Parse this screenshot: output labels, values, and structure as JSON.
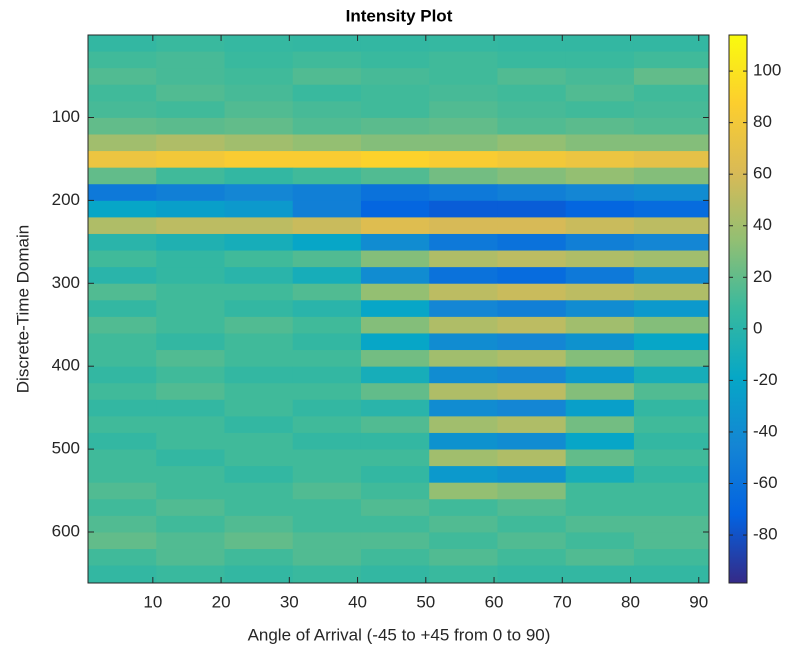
{
  "chart_data": {
    "type": "heatmap",
    "title": "Intensity Plot",
    "x_label": "Angle of Arrival (-45 to +45 from 0 to 90)",
    "y_label": "Discrete-Time Domain",
    "xlim": [
      0.5,
      91.5
    ],
    "ylim": [
      0.5,
      661.5
    ],
    "y_reversed": true,
    "xticks": [
      10,
      20,
      30,
      40,
      50,
      60,
      70,
      80,
      90
    ],
    "yticks": [
      100,
      200,
      300,
      400,
      500,
      600
    ],
    "clim": [
      -98.6,
      114
    ],
    "cticks": [
      -80,
      -60,
      -40,
      -20,
      0,
      20,
      40,
      60,
      80,
      100
    ],
    "colormap": [
      "#352a87",
      "#0363e1",
      "#1485d4",
      "#06a7c6",
      "#38b99e",
      "#92bf73",
      "#d9ba56",
      "#fcce2e",
      "#f9fb0e"
    ],
    "x_edges": [
      0.5,
      10.5,
      20.5,
      30.5,
      40.5,
      50.5,
      60.5,
      70.5,
      80.5,
      91.5
    ],
    "y_edges": [
      0.5,
      20.5,
      40.5,
      60.5,
      80.5,
      100.5,
      120.5,
      140.5,
      160.5,
      180.5,
      200.5,
      220.5,
      240.5,
      260.5,
      280.5,
      300.5,
      320.5,
      340.5,
      360.5,
      380.5,
      400.5,
      420.5,
      440.5,
      460.5,
      480.5,
      500.5,
      520.5,
      540.5,
      560.5,
      580.5,
      600.5,
      620.5,
      640.5,
      661.5
    ],
    "z": [
      [
        5,
        8,
        6,
        5,
        5,
        6,
        5,
        5,
        5
      ],
      [
        10,
        12,
        8,
        10,
        8,
        10,
        8,
        8,
        10
      ],
      [
        15,
        12,
        10,
        15,
        12,
        10,
        15,
        12,
        20
      ],
      [
        10,
        15,
        12,
        8,
        10,
        12,
        10,
        15,
        10
      ],
      [
        12,
        10,
        15,
        12,
        10,
        15,
        12,
        10,
        12
      ],
      [
        20,
        18,
        20,
        15,
        18,
        20,
        15,
        18,
        15
      ],
      [
        40,
        45,
        40,
        35,
        30,
        30,
        35,
        30,
        30
      ],
      [
        75,
        80,
        85,
        85,
        90,
        85,
        80,
        75,
        70
      ],
      [
        20,
        10,
        5,
        10,
        15,
        25,
        30,
        35,
        30
      ],
      [
        -55,
        -50,
        -45,
        -50,
        -60,
        -55,
        -50,
        -45,
        -40
      ],
      [
        -20,
        -25,
        -30,
        -50,
        -70,
        -75,
        -75,
        -70,
        -65
      ],
      [
        45,
        50,
        50,
        55,
        65,
        60,
        60,
        55,
        50
      ],
      [
        0,
        -5,
        -10,
        -20,
        -40,
        -55,
        -60,
        -50,
        -45
      ],
      [
        10,
        5,
        10,
        15,
        30,
        45,
        50,
        45,
        40
      ],
      [
        0,
        5,
        0,
        -10,
        -40,
        -60,
        -65,
        -55,
        -40
      ],
      [
        15,
        10,
        10,
        15,
        35,
        50,
        55,
        50,
        45
      ],
      [
        5,
        10,
        5,
        0,
        -20,
        -45,
        -50,
        -40,
        -30
      ],
      [
        15,
        10,
        15,
        10,
        30,
        45,
        50,
        40,
        30
      ],
      [
        10,
        5,
        10,
        5,
        -20,
        -40,
        -45,
        -35,
        -20
      ],
      [
        10,
        15,
        10,
        10,
        25,
        40,
        45,
        30,
        20
      ],
      [
        5,
        10,
        5,
        5,
        -10,
        -40,
        -45,
        -30,
        -10
      ],
      [
        10,
        15,
        10,
        10,
        20,
        45,
        50,
        30,
        15
      ],
      [
        5,
        5,
        10,
        5,
        0,
        -40,
        -45,
        -25,
        5
      ],
      [
        10,
        10,
        5,
        10,
        15,
        40,
        45,
        25,
        10
      ],
      [
        5,
        10,
        10,
        5,
        5,
        -35,
        -40,
        -20,
        5
      ],
      [
        10,
        5,
        10,
        10,
        10,
        40,
        45,
        20,
        10
      ],
      [
        10,
        10,
        5,
        10,
        5,
        -30,
        -35,
        -10,
        5
      ],
      [
        15,
        10,
        10,
        15,
        10,
        35,
        30,
        10,
        10
      ],
      [
        10,
        15,
        10,
        10,
        15,
        10,
        15,
        10,
        10
      ],
      [
        15,
        10,
        15,
        10,
        10,
        15,
        10,
        15,
        15
      ],
      [
        20,
        15,
        20,
        15,
        15,
        10,
        15,
        10,
        15
      ],
      [
        10,
        15,
        10,
        15,
        10,
        15,
        10,
        15,
        10
      ],
      [
        5,
        8,
        5,
        8,
        5,
        8,
        5,
        5,
        5
      ]
    ]
  }
}
